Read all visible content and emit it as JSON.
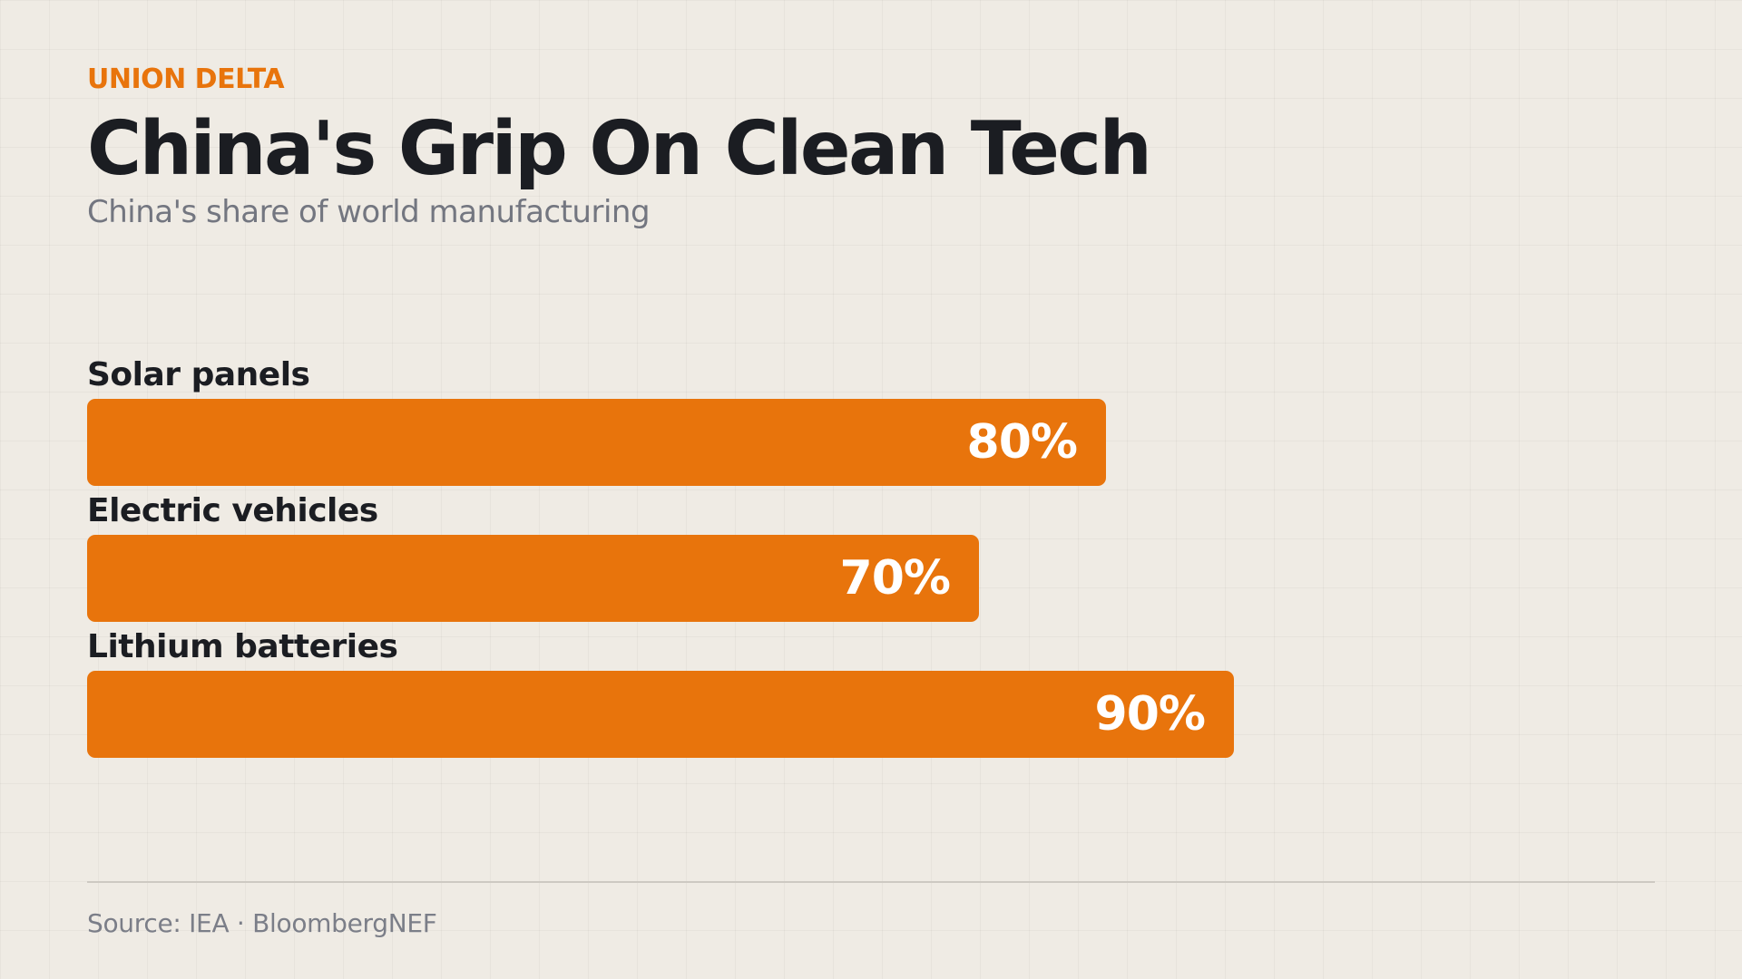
{
  "brand": "UNION DELTA",
  "chart_data": {
    "type": "bar",
    "orientation": "horizontal",
    "title": "China's Grip On Clean Tech",
    "subtitle": "China's share of world manufacturing",
    "categories": [
      "Solar panels",
      "Electric vehicles",
      "Lithium batteries"
    ],
    "values": [
      80,
      70,
      90
    ],
    "value_labels": [
      "80%",
      "70%",
      "90%"
    ],
    "unit": "%",
    "xlim": [
      0,
      100
    ],
    "grid": false
  },
  "source": "Source: IEA · BloombergNEF",
  "colors": {
    "accent": "#e8740c",
    "bar": "#e8740c",
    "title": "#1b1d22",
    "subtitle": "#737680",
    "label": "#1b1d22",
    "source": "#7b7e88",
    "background": "#efebe4"
  }
}
